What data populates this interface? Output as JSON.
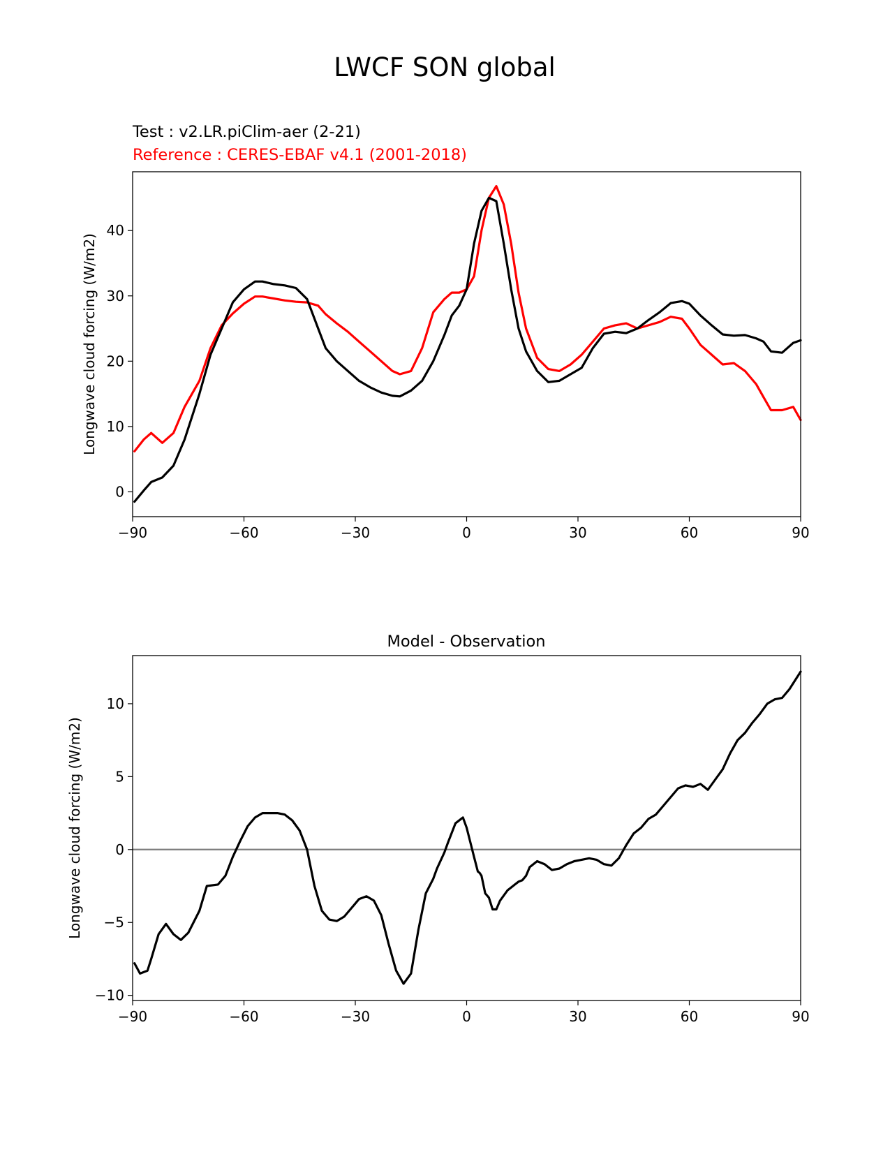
{
  "figure": {
    "title": "LWCF SON global",
    "test_label": "Test : v2.LR.piClim-aer (2-21)",
    "reference_label": "Reference : CERES-EBAF v4.1 (2001-2018)",
    "test_color": "#000000",
    "reference_color": "#ff0000",
    "zero_line_color": "#808080"
  },
  "chart_data": [
    {
      "type": "line",
      "title": "",
      "xlabel": "",
      "ylabel": "Longwave cloud forcing (W/m2)",
      "xlim": [
        -90,
        90
      ],
      "ylim": [
        -3.8,
        49
      ],
      "xticks": [
        -90,
        -60,
        -30,
        0,
        30,
        60,
        90
      ],
      "xtick_labels": [
        "−90",
        "−60",
        "−30",
        "0",
        "30",
        "60",
        "90"
      ],
      "yticks": [
        0,
        10,
        20,
        30,
        40
      ],
      "ytick_labels": [
        "0",
        "10",
        "20",
        "30",
        "40"
      ],
      "grid": false,
      "x": [
        -89.5,
        -87,
        -85,
        -82,
        -79,
        -76,
        -72,
        -69,
        -66,
        -63,
        -60,
        -57,
        -55,
        -52,
        -49,
        -46,
        -43,
        -40,
        -38,
        -35,
        -32,
        -29,
        -26,
        -23,
        -20,
        -18,
        -15,
        -12,
        -9,
        -6,
        -4,
        -2,
        0,
        2,
        4,
        6,
        8,
        10,
        12,
        14,
        16,
        19,
        22,
        25,
        28,
        31,
        34,
        37,
        40,
        43,
        46,
        49,
        52,
        55,
        58,
        60,
        63,
        66,
        69,
        72,
        75,
        78,
        80,
        82,
        85,
        88,
        90
      ],
      "series": [
        {
          "name": "Test : v2.LR.piClim-aer (2-21)",
          "color": "#000000",
          "values": [
            -1.5,
            0.2,
            1.5,
            2.2,
            4,
            8,
            15,
            21,
            25,
            29,
            31,
            32.2,
            32.2,
            31.8,
            31.6,
            31.2,
            29.5,
            25,
            22,
            20,
            18.5,
            17,
            16,
            15.2,
            14.7,
            14.6,
            15.5,
            17,
            20,
            24,
            27,
            28.5,
            31,
            38,
            43,
            45,
            44.5,
            38,
            31,
            25,
            21.5,
            18.5,
            16.8,
            17,
            18,
            19,
            22,
            24.2,
            24.5,
            24.3,
            25,
            26.3,
            27.5,
            28.9,
            29.2,
            28.8,
            27,
            25.5,
            24.1,
            23.9,
            24,
            23.5,
            23,
            21.5,
            21.3,
            22.8,
            23.2
          ]
        },
        {
          "name": "Reference : CERES-EBAF v4.1 (2001-2018)",
          "color": "#ff0000",
          "values": [
            6.2,
            8,
            9,
            7.5,
            9,
            13,
            17,
            22,
            25.5,
            27.3,
            28.8,
            29.9,
            29.9,
            29.6,
            29.3,
            29.1,
            29,
            28.5,
            27.2,
            25.8,
            24.5,
            23,
            21.5,
            20,
            18.5,
            18,
            18.5,
            22,
            27.5,
            29.5,
            30.5,
            30.5,
            31,
            33,
            40,
            45,
            46.8,
            44,
            38,
            30.5,
            25,
            20.5,
            18.8,
            18.5,
            19.5,
            21,
            23,
            25,
            25.5,
            25.8,
            25,
            25.5,
            26,
            26.8,
            26.5,
            25,
            22.5,
            21,
            19.5,
            19.7,
            18.5,
            16.5,
            14.5,
            12.5,
            12.5,
            13,
            11
          ]
        }
      ]
    },
    {
      "type": "line",
      "title": "Model - Observation",
      "xlabel": "",
      "ylabel": "Longwave cloud forcing (W/m2)",
      "xlim": [
        -90,
        90
      ],
      "ylim": [
        -10.35,
        13.3
      ],
      "xticks": [
        -90,
        -60,
        -30,
        0,
        30,
        60,
        90
      ],
      "xtick_labels": [
        "−90",
        "−60",
        "−30",
        "0",
        "30",
        "60",
        "90"
      ],
      "yticks": [
        -10,
        -5,
        0,
        5,
        10
      ],
      "ytick_labels": [
        "−10",
        "−5",
        "0",
        "5",
        "10"
      ],
      "grid": false,
      "reference_line": 0,
      "x": [
        -89.5,
        -88,
        -86,
        -85,
        -83,
        -81,
        -79,
        -77,
        -75,
        -72,
        -70,
        -67,
        -65,
        -63,
        -61,
        -59,
        -57,
        -55,
        -53,
        -51,
        -49,
        -47,
        -45,
        -43,
        -41,
        -39,
        -37,
        -35,
        -33,
        -31,
        -29,
        -27,
        -25,
        -23,
        -21,
        -19,
        -17,
        -15,
        -13,
        -11,
        -9,
        -8,
        -6,
        -5,
        -3,
        -1,
        0,
        1,
        2,
        3,
        3.5,
        4,
        5,
        6,
        7,
        8,
        9,
        11,
        13,
        14,
        15,
        16,
        17,
        19,
        21,
        23,
        25,
        27,
        29,
        31,
        33,
        35,
        37,
        39,
        41,
        43,
        45,
        47,
        49,
        51,
        53,
        55,
        57,
        59,
        61,
        63,
        65,
        67,
        69,
        71,
        73,
        75,
        77,
        79,
        81,
        83,
        85,
        87,
        89,
        90
      ],
      "series": [
        {
          "name": "Model - Observation",
          "color": "#000000",
          "values": [
            -7.8,
            -8.5,
            -8.3,
            -7.5,
            -5.8,
            -5.1,
            -5.8,
            -6.2,
            -5.7,
            -4.2,
            -2.5,
            -2.4,
            -1.8,
            -0.5,
            0.6,
            1.6,
            2.2,
            2.5,
            2.5,
            2.5,
            2.4,
            2,
            1.3,
            0,
            -2.5,
            -4.2,
            -4.8,
            -4.9,
            -4.6,
            -4,
            -3.4,
            -3.2,
            -3.5,
            -4.5,
            -6.5,
            -8.3,
            -9.2,
            -8.5,
            -5.5,
            -3,
            -2,
            -1.3,
            -0.2,
            0.5,
            1.8,
            2.2,
            1.5,
            0.5,
            -0.5,
            -1.5,
            -1.6,
            -1.8,
            -3,
            -3.3,
            -4.1,
            -4.1,
            -3.5,
            -2.8,
            -2.4,
            -2.2,
            -2.1,
            -1.8,
            -1.2,
            -0.8,
            -1,
            -1.4,
            -1.3,
            -1.0,
            -0.8,
            -0.7,
            -0.6,
            -0.7,
            -1.0,
            -1.1,
            -0.6,
            0.3,
            1.1,
            1.5,
            2.1,
            2.4,
            3.0,
            3.6,
            4.2,
            4.4,
            4.3,
            4.5,
            4.1,
            4.8,
            5.5,
            6.6,
            7.5,
            8.0,
            8.7,
            9.3,
            10.0,
            10.3,
            10.4,
            11.0,
            11.8,
            12.2
          ]
        }
      ]
    }
  ]
}
